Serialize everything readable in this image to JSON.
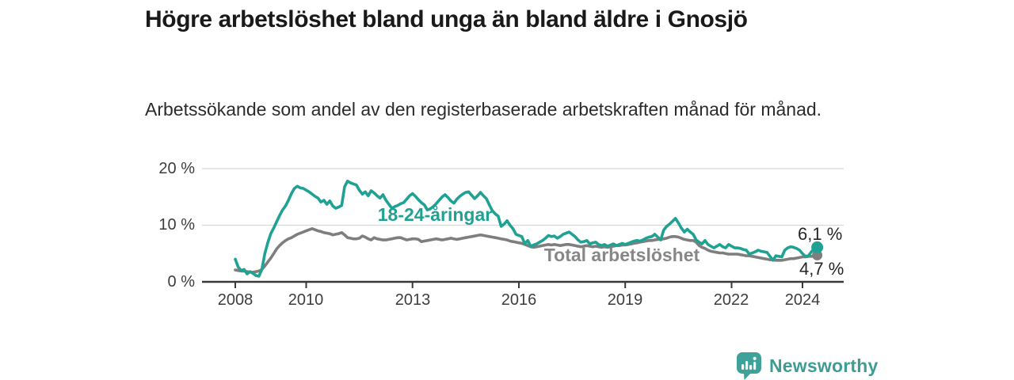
{
  "header": {
    "title": "Högre arbetslöshet bland unga än bland äldre i Gnosjö",
    "subtitle": "Arbetssökande som andel av den registerbaserade arbetskraften månad för månad."
  },
  "chart_data": {
    "type": "line",
    "title": "Högre arbetslöshet bland unga än bland äldre i Gnosjö",
    "subtitle": "Arbetssökande som andel av den registerbaserade arbetskraften månad för månad.",
    "x_unit": "month",
    "x_start": "2008-01",
    "x_end": "2024-06",
    "x_tick_labels": [
      "2008",
      "2010",
      "2013",
      "2016",
      "2019",
      "2022",
      "2024"
    ],
    "y_tick_labels": [
      "0 %",
      "10 %",
      "20 %"
    ],
    "ylim": [
      0,
      21
    ],
    "grid": "horizontal",
    "legend_position": "inline-labels",
    "series": [
      {
        "id": "youth",
        "name": "18-24-åringar",
        "color": "#1FA294",
        "end_value": 6.1,
        "end_label": "6,1 %",
        "values": [
          4.0,
          2.6,
          2.0,
          2.2,
          1.4,
          1.8,
          1.5,
          1.1,
          1.0,
          2.2,
          5.0,
          6.9,
          8.5,
          9.5,
          10.6,
          11.7,
          12.7,
          13.4,
          14.4,
          15.6,
          16.5,
          16.9,
          16.6,
          16.5,
          16.2,
          15.9,
          15.5,
          15.1,
          14.8,
          14.1,
          14.4,
          13.7,
          14.3,
          13.4,
          13.0,
          13.2,
          13.5,
          16.8,
          17.8,
          17.5,
          17.3,
          17.1,
          16.2,
          15.5,
          15.9,
          15.2,
          16.1,
          15.7,
          15.2,
          14.8,
          15.4,
          14.4,
          13.7,
          13.0,
          13.3,
          13.5,
          13.8,
          14.0,
          14.6,
          15.2,
          15.6,
          15.1,
          14.5,
          14.0,
          13.6,
          12.7,
          12.9,
          13.3,
          13.8,
          14.4,
          15.0,
          15.4,
          14.9,
          14.3,
          13.9,
          14.6,
          15.1,
          15.5,
          15.8,
          15.9,
          15.3,
          14.7,
          15.2,
          15.8,
          15.2,
          14.7,
          13.6,
          12.6,
          12.0,
          11.6,
          9.8,
          10.2,
          10.8,
          10.0,
          9.4,
          8.4,
          8.2,
          8.0,
          6.7,
          7.3,
          6.3,
          6.5,
          6.7,
          7.0,
          7.3,
          7.7,
          8.2,
          8.0,
          8.1,
          7.7,
          8.0,
          8.4,
          8.6,
          8.8,
          8.4,
          8.0,
          7.4,
          7.0,
          7.1,
          7.3,
          6.7,
          6.9,
          7.0,
          6.6,
          6.4,
          6.6,
          6.3,
          6.5,
          6.7,
          6.4,
          6.6,
          6.8,
          6.6,
          6.8,
          7.0,
          7.2,
          7.3,
          7.2,
          7.4,
          7.7,
          7.9,
          8.0,
          8.4,
          7.9,
          7.4,
          9.1,
          9.8,
          10.2,
          10.7,
          11.2,
          10.4,
          9.5,
          8.8,
          9.3,
          8.8,
          8.4,
          7.4,
          7.0,
          6.7,
          7.3,
          6.6,
          6.3,
          6.0,
          6.3,
          6.6,
          6.2,
          6.0,
          6.6,
          6.3,
          6.0,
          6.0,
          5.9,
          5.7,
          5.6,
          4.9,
          5.1,
          5.3,
          5.6,
          5.4,
          5.3,
          5.2,
          4.5,
          3.8,
          4.6,
          4.5,
          4.4,
          5.6,
          6.0,
          6.2,
          6.1,
          5.9,
          5.6,
          5.0,
          4.5,
          4.6,
          5.3,
          5.9,
          6.1
        ]
      },
      {
        "id": "total",
        "name": "Total arbetslöshet",
        "color": "#7E7E7E",
        "end_value": 4.7,
        "end_label": "4,7 %",
        "values": [
          2.1,
          2.0,
          1.9,
          1.9,
          1.8,
          1.7,
          1.7,
          1.8,
          1.9,
          2.2,
          2.8,
          3.5,
          4.2,
          5.0,
          5.8,
          6.4,
          6.9,
          7.3,
          7.6,
          7.8,
          8.1,
          8.4,
          8.6,
          8.8,
          9.0,
          9.2,
          9.4,
          9.2,
          9.0,
          8.9,
          8.7,
          8.6,
          8.5,
          8.3,
          8.4,
          8.5,
          8.7,
          8.3,
          7.8,
          7.7,
          7.6,
          7.6,
          7.7,
          8.1,
          7.9,
          7.6,
          7.4,
          7.8,
          7.6,
          7.5,
          7.4,
          7.4,
          7.5,
          7.6,
          7.7,
          7.8,
          7.8,
          7.6,
          7.4,
          7.5,
          7.6,
          7.6,
          7.5,
          7.1,
          7.2,
          7.3,
          7.4,
          7.5,
          7.6,
          7.5,
          7.4,
          7.5,
          7.6,
          7.7,
          7.6,
          7.5,
          7.6,
          7.7,
          7.8,
          7.9,
          8.0,
          8.1,
          8.2,
          8.3,
          8.2,
          8.1,
          8.0,
          7.9,
          7.8,
          7.7,
          7.6,
          7.5,
          7.4,
          7.2,
          7.1,
          7.0,
          6.9,
          6.8,
          6.6,
          6.4,
          6.2,
          6.1,
          6.2,
          6.3,
          6.4,
          6.5,
          6.6,
          6.5,
          6.6,
          6.5,
          6.4,
          6.5,
          6.6,
          6.6,
          6.5,
          6.4,
          6.3,
          6.2,
          6.3,
          6.4,
          6.3,
          6.2,
          6.3,
          6.2,
          6.1,
          6.2,
          6.1,
          6.2,
          6.3,
          6.4,
          6.4,
          6.5,
          6.5,
          6.6,
          6.7,
          6.8,
          6.9,
          7.0,
          7.1,
          7.2,
          7.3,
          7.3,
          7.4,
          7.5,
          7.5,
          7.6,
          7.7,
          7.9,
          8.0,
          8.0,
          7.9,
          7.7,
          7.5,
          7.4,
          7.3,
          7.3,
          7.0,
          6.4,
          6.1,
          5.9,
          5.6,
          5.4,
          5.3,
          5.2,
          5.1,
          5.1,
          5.0,
          4.9,
          4.9,
          4.9,
          4.9,
          4.8,
          4.7,
          4.6,
          4.6,
          4.5,
          4.4,
          4.3,
          4.2,
          4.1,
          4.0,
          3.9,
          3.9,
          3.8,
          3.8,
          3.8,
          3.9,
          4.0,
          4.1,
          4.1,
          4.2,
          4.3,
          4.4,
          4.4,
          4.5,
          4.5,
          4.6,
          4.7
        ]
      }
    ]
  },
  "annotations": {
    "youth_series_label": "18-24-åringar",
    "total_series_label": "Total arbetslöshet",
    "youth_end_label": "6,1 %",
    "total_end_label": "4,7 %"
  },
  "footer": {
    "brand": "Newsworthy",
    "brand_color": "#3E9C94",
    "logo_icon": "bar-chart-speech-bubble-icon"
  },
  "colors": {
    "youth_line": "#1FA294",
    "total_line": "#7E7E7E",
    "axis": "#383838",
    "gridline": "#D8D8D8",
    "text": "#191919"
  }
}
